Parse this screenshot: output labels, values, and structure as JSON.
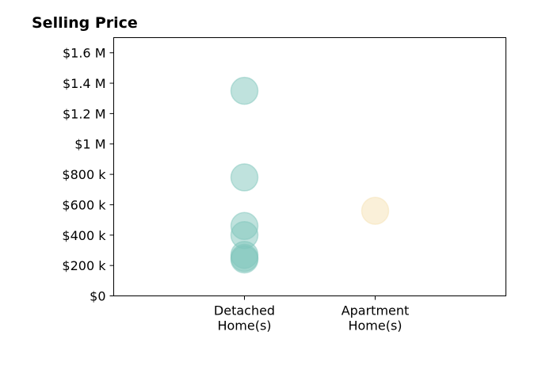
{
  "chart_data": {
    "type": "scatter",
    "title": "Selling Price",
    "xlabel": "",
    "ylabel": "",
    "categories": [
      "Detached\nHome(s)",
      "Apartment\nHome(s)"
    ],
    "xlim": [
      -1,
      2
    ],
    "ylim": [
      0,
      1700000
    ],
    "yticks": [
      {
        "value": 0,
        "label": "$0"
      },
      {
        "value": 200000,
        "label": "$200 k"
      },
      {
        "value": 400000,
        "label": "$400 k"
      },
      {
        "value": 600000,
        "label": "$600 k"
      },
      {
        "value": 800000,
        "label": "$800 k"
      },
      {
        "value": 1000000,
        "label": "$1 M"
      },
      {
        "value": 1200000,
        "label": "$1.2 M"
      },
      {
        "value": 1400000,
        "label": "$1.4 M"
      },
      {
        "value": 1600000,
        "label": "$1.6 M"
      }
    ],
    "grid": false,
    "series": [
      {
        "color": "#7fc6bc",
        "points": [
          {
            "x": 0,
            "y": 1350000
          },
          {
            "x": 0,
            "y": 780000
          },
          {
            "x": 0,
            "y": 460000
          },
          {
            "x": 0,
            "y": 400000
          },
          {
            "x": 0,
            "y": 270000
          },
          {
            "x": 0,
            "y": 250000
          },
          {
            "x": 0,
            "y": 240000
          }
        ]
      },
      {
        "color": "#f6e2b3",
        "points": [
          {
            "x": 1,
            "y": 560000
          }
        ]
      }
    ]
  }
}
